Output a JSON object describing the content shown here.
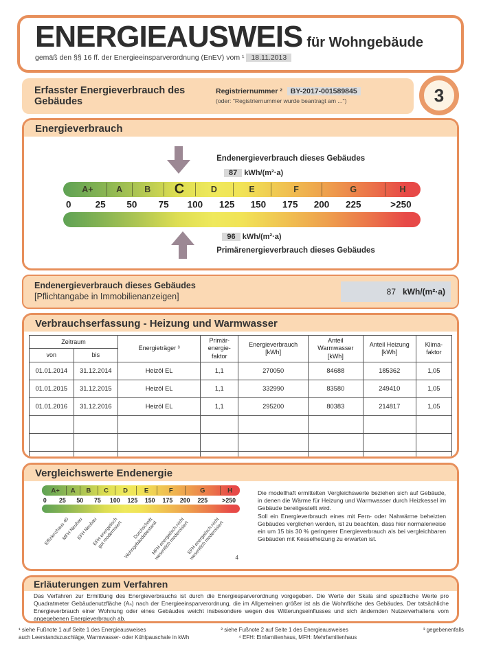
{
  "header": {
    "title": "ENERGIEAUSWEIS",
    "subtitle": "für Wohngebäude",
    "law_line": "gemäß den §§ 16 ff. der Energieeinsparverordnung (EnEV) vom ¹",
    "law_date": "18.11.2013"
  },
  "registration": {
    "section_title": "Erfasster Energieverbrauch des Gebäudes",
    "reg_label": "Registriernummer ²",
    "reg_number": "BY-2017-001589845",
    "reg_alt": "(oder: \"Registriernummer wurde beantragt am ...\")",
    "page_number": "3"
  },
  "consumption": {
    "section_title": "Energieverbrauch",
    "end_label": "Endenergieverbrauch dieses Gebäudes",
    "end_value": "87",
    "end_unit": "kWh/(m²·a)",
    "end_arrow_p": 32.3,
    "primary_value": "96",
    "primary_unit": "kWh/(m²·a)",
    "primary_label": "Primärenergieverbrauch dieses Gebäudes",
    "primary_arrow_p": 33.5
  },
  "scale": {
    "letters": [
      {
        "t": "A+",
        "p": 6.8
      },
      {
        "t": "A",
        "p": 15.7
      },
      {
        "t": "B",
        "p": 23.6
      },
      {
        "t": "C",
        "p": 32.5,
        "big": true
      },
      {
        "t": "D",
        "p": 42.2
      },
      {
        "t": "E",
        "p": 52.8
      },
      {
        "t": "F",
        "p": 65.2
      },
      {
        "t": "G",
        "p": 81.2
      },
      {
        "t": "H",
        "p": 95.0
      }
    ],
    "separators": [
      12.1,
      19.2,
      28.1,
      36.9,
      47.5,
      58.1,
      72.3,
      90.0
    ],
    "ticks": [
      {
        "t": "0",
        "p": 1.5
      },
      {
        "t": "25",
        "p": 10.4
      },
      {
        "t": "50",
        "p": 19.2
      },
      {
        "t": "75",
        "p": 28.1
      },
      {
        "t": "100",
        "p": 36.9
      },
      {
        "t": "125",
        "p": 45.8
      },
      {
        "t": "150",
        "p": 54.6
      },
      {
        "t": "175",
        "p": 63.5
      },
      {
        "t": "200",
        "p": 72.3
      },
      {
        "t": "225",
        "p": 81.2
      },
      {
        "t": ">250",
        "p": 94.5
      }
    ]
  },
  "band": {
    "title": "Endenergieverbrauch dieses Gebäudes",
    "subtitle": "[Pflichtangabe in Immobilienanzeigen]",
    "value": "87",
    "unit": "kWh/(m²·a)"
  },
  "table": {
    "section_title": "Verbrauchserfassung - Heizung und Warmwasser",
    "header": {
      "zeitraum": "Zeitraum",
      "von": "von",
      "bis": "bis",
      "energietraeger": "Energieträger ³",
      "primaerfaktor": "Primär-\nenergie-\nfaktor",
      "energieverbrauch": "Energieverbrauch\n[kWh]",
      "anteil_warmwasser": "Anteil\nWarmwasser\n[kWh]",
      "anteil_heizung": "Anteil Heizung\n[kWh]",
      "klimafaktor": "Klima-\nfaktor"
    },
    "rows": [
      [
        "01.01.2014",
        "31.12.2014",
        "Heizöl EL",
        "1,1",
        "270050",
        "84688",
        "185362",
        "1,05"
      ],
      [
        "01.01.2015",
        "31.12.2015",
        "Heizöl EL",
        "1,1",
        "332990",
        "83580",
        "249410",
        "1,05"
      ],
      [
        "01.01.2016",
        "31.12.2016",
        "Heizöl EL",
        "1,1",
        "295200",
        "80383",
        "214817",
        "1,05"
      ]
    ],
    "empty_rows": 3
  },
  "comparison": {
    "section_title": "Vergleichswerte Endenergie",
    "labels": [
      {
        "text": "Effizienzhaus 40",
        "p": 12.1
      },
      {
        "text": "MFH Neubau",
        "p": 19.2
      },
      {
        "text": "EFH Neubau",
        "p": 26.3
      },
      {
        "text": "EFH energetisch\ngut modernisiert",
        "p": 36.9
      },
      {
        "text": "Durchschnitt\nWohngebäudebestand",
        "p": 54.6
      },
      {
        "text": "MFH energetisch nicht\nwesentlich modernisiert",
        "p": 70.5
      },
      {
        "text": "EFH energetisch nicht\nwesentlich modernisiert",
        "p": 88.2
      }
    ],
    "footnote_mark": "4",
    "text": "Die modellhaft ermittelten Vergleichswerte beziehen sich auf Gebäude, in denen die Wärme für Heizung und Warmwasser durch Heizkessel im Gebäude bereitgestellt wird.\nSoll ein Energieverbrauch eines mit Fern- oder Nahwärme beheizten Gebäudes verglichen werden, ist zu beachten, dass hier normalerweise ein um 15 bis 30 % geringerer Energieverbrauch als bei vergleichbaren Gebäuden mit Kesselheizung zu erwarten ist."
  },
  "explanation": {
    "section_title": "Erläuterungen zum Verfahren",
    "text": "Das Verfahren zur Ermittlung des Energieverbrauchs ist durch die Energiesparverordnung vorgegeben. Die Werte der Skala sind spezifische Werte pro Quadratmeter Gebäudenutzfläche (Aₙ) nach der Energieeinsparverordnung, die im Allgemeinen größer ist als die Wohnfläche des Gebäudes. Der tatsächliche Energieverbrauch einer Wohnung oder eines Gebäudes weicht insbesondere wegen des Witterungseinflusses und sich ändernden Nutzerverhaltens vom angegebenen Energieverbrauch ab."
  },
  "footnotes": {
    "fn1": "¹ siehe Fußnote 1 auf Seite 1 des Energieausweises",
    "fn2": "² siehe Fußnote 2 auf Seite 1 des Energieausweises",
    "fn3a": "³ gegebenenfalls",
    "fn3b": "auch Leerstandszuschläge, Warmwasser- oder Kühlpauschale in kWh",
    "fn4": "⁴ EFH: Einfamilienhaus, MFH: Mehrfamilienhaus"
  },
  "colors": {
    "border_orange": "#e78f5b",
    "fill_peach": "#fbd9b4",
    "value_grey": "#d9d9d9",
    "arrow_mauve": "#9c8894",
    "scale_green": "#5fa254",
    "scale_yellow": "#efe95c",
    "scale_red": "#e74947"
  }
}
